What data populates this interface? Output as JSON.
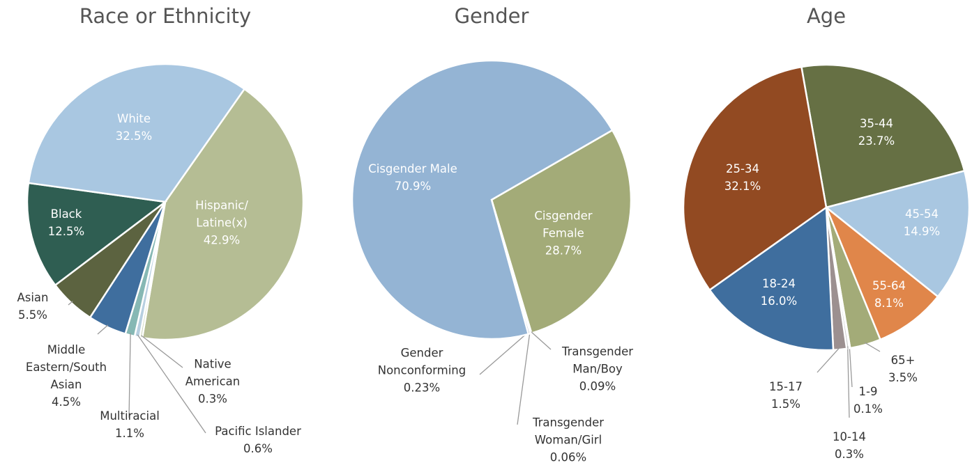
{
  "chart_data": [
    {
      "type": "pie",
      "title": "Race or Ethnicity",
      "categories": [
        "Hispanic/Latine(x)",
        "Native American",
        "Pacific Islander",
        "Multiracial",
        "Middle Eastern/South Asian",
        "Asian",
        "Black",
        "White"
      ],
      "values": [
        42.9,
        0.3,
        0.6,
        1.1,
        4.5,
        5.5,
        12.5,
        32.5
      ],
      "value_labels": [
        "42.9%",
        "0.3%",
        "0.6%",
        "1.1%",
        "4.5%",
        "5.5%",
        "12.5%",
        "32.5%"
      ],
      "colors": [
        "#b5bd94",
        "#c9d3b8",
        "#b7cfe0",
        "#86b8b4",
        "#3f6e9e",
        "#5c6340",
        "#2f5e52",
        "#a9c7e1"
      ]
    },
    {
      "type": "pie",
      "title": "Gender",
      "categories": [
        "Cisgender Female",
        "Transgender Man/Boy",
        "Transgender Woman/Girl",
        "Gender Nonconforming",
        "Cisgender Male"
      ],
      "values": [
        28.7,
        0.09,
        0.06,
        0.23,
        70.9
      ],
      "value_labels": [
        "28.7%",
        "0.09%",
        "0.06%",
        "0.23%",
        "70.9%"
      ],
      "colors": [
        "#a3ab78",
        "#8f8f8f",
        "#b0b0b0",
        "#6b7d9e",
        "#94b4d4"
      ]
    },
    {
      "type": "pie",
      "title": "Age",
      "categories": [
        "35-44",
        "45-54",
        "55-64",
        "65+",
        "1-9",
        "10-14",
        "15-17",
        "18-24",
        "25-34"
      ],
      "values": [
        23.7,
        14.9,
        8.1,
        3.5,
        0.1,
        0.3,
        1.5,
        16.0,
        32.1
      ],
      "value_labels": [
        "23.7%",
        "14.9%",
        "8.1%",
        "3.5%",
        "0.1%",
        "0.3%",
        "1.5%",
        "16.0%",
        "32.1%"
      ],
      "colors": [
        "#667044",
        "#a9c7e1",
        "#e0864a",
        "#a3ab78",
        "#3f6e9e",
        "#c9c9c9",
        "#9c9090",
        "#3f6e9e",
        "#924a22"
      ]
    }
  ]
}
